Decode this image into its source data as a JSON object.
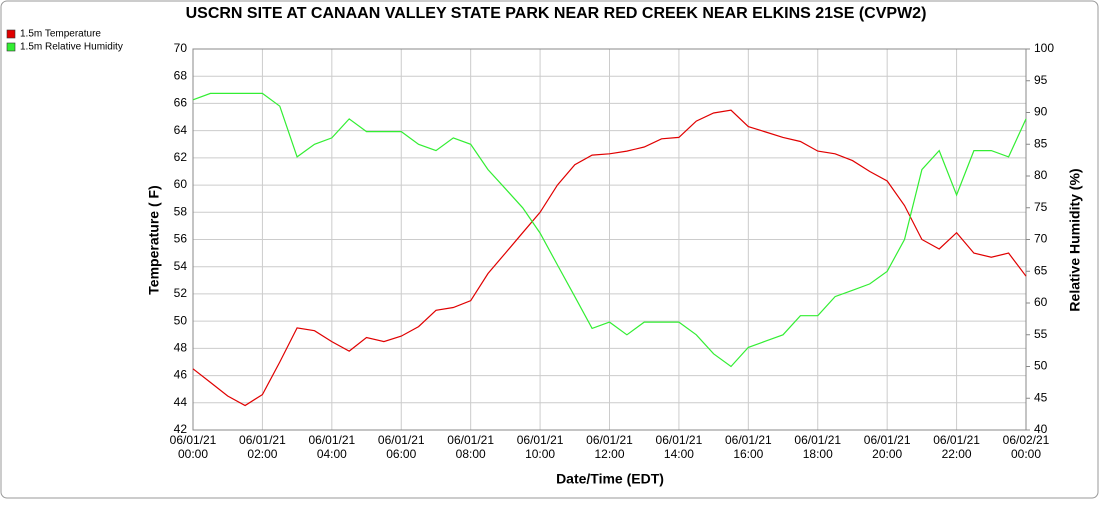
{
  "chart_data": {
    "type": "line",
    "title": "USCRN SITE AT CANAAN VALLEY STATE PARK NEAR RED CREEK NEAR ELKINS 21SE (CVPW2)",
    "xlabel": "Date/Time (EDT)",
    "ylabel": "Temperature ( F)",
    "y2label": "Relative Humidity (%)",
    "x": [
      0,
      0.5,
      1,
      1.5,
      2,
      2.5,
      3,
      3.5,
      4,
      4.5,
      5,
      5.5,
      6,
      6.5,
      7,
      7.5,
      8,
      8.5,
      9,
      9.5,
      10,
      10.5,
      11,
      11.5,
      12,
      12.5,
      13,
      13.5,
      14,
      14.5,
      15,
      15.5,
      16,
      16.5,
      17,
      17.5,
      18,
      18.5,
      19,
      19.5,
      20,
      20.5,
      21,
      21.5,
      22,
      22.5,
      23,
      23.5,
      24
    ],
    "series": [
      {
        "name": "1.5m Temperature",
        "color": "#e00000",
        "values": [
          46.5,
          45.5,
          44.5,
          43.8,
          44.6,
          47,
          49.5,
          49.3,
          48.5,
          47.8,
          48.8,
          48.5,
          48.9,
          49.6,
          50.8,
          51,
          51.5,
          53.5,
          55,
          56.5,
          58,
          60,
          61.5,
          62.2,
          62.3,
          62.5,
          62.8,
          63.4,
          63.5,
          64.7,
          65.3,
          65.5,
          64.3,
          63.9,
          63.5,
          63.2,
          62.5,
          62.3,
          61.8,
          61,
          60.3,
          58.5,
          56,
          55.3,
          56.5,
          55,
          54.7,
          55,
          53.3
        ]
      },
      {
        "name": "1.5m Relative Humidity",
        "color": "#33ee33",
        "axis": "y2",
        "values": [
          92,
          93,
          93,
          93,
          93,
          91,
          83,
          85,
          86,
          89,
          87,
          87,
          87,
          85,
          84,
          86,
          85,
          81,
          78,
          75,
          71,
          66,
          61,
          56,
          57,
          55,
          57,
          57,
          57,
          55,
          52,
          50,
          53,
          54,
          55,
          58,
          58,
          61,
          62,
          63,
          65,
          70,
          81,
          84,
          77,
          84,
          84,
          83,
          89
        ]
      }
    ],
    "xlim": [
      0,
      24
    ],
    "xticks": [
      {
        "value": 0,
        "label": "06/01/21 00:00"
      },
      {
        "value": 2,
        "label": "06/01/21 02:00"
      },
      {
        "value": 4,
        "label": "06/01/21 04:00"
      },
      {
        "value": 6,
        "label": "06/01/21 06:00"
      },
      {
        "value": 8,
        "label": "06/01/21 08:00"
      },
      {
        "value": 10,
        "label": "06/01/21 10:00"
      },
      {
        "value": 12,
        "label": "06/01/21 12:00"
      },
      {
        "value": 14,
        "label": "06/01/21 14:00"
      },
      {
        "value": 16,
        "label": "06/01/21 16:00"
      },
      {
        "value": 18,
        "label": "06/01/21 18:00"
      },
      {
        "value": 20,
        "label": "06/01/21 20:00"
      },
      {
        "value": 22,
        "label": "06/01/21 22:00"
      },
      {
        "value": 24,
        "label": "06/02/21 00:00"
      }
    ],
    "ylim": [
      42,
      70
    ],
    "yticks": [
      42,
      44,
      46,
      48,
      50,
      52,
      54,
      56,
      58,
      60,
      62,
      64,
      66,
      68,
      70
    ],
    "y2lim": [
      40,
      100
    ],
    "y2ticks": [
      40,
      45,
      50,
      55,
      60,
      65,
      70,
      75,
      80,
      85,
      90,
      95,
      100
    ],
    "grid": true
  }
}
